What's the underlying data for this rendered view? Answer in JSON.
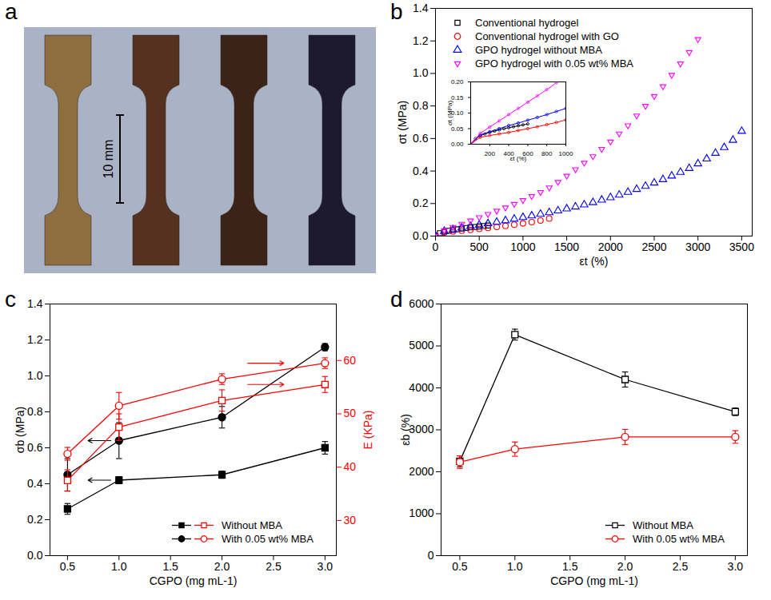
{
  "chart_data": [
    {
      "panel": "a",
      "type": "photo",
      "colors": [
        "#8e6d3e",
        "#55321f",
        "#3b2318",
        "#1d1a30"
      ],
      "scale_bar": "10 mm"
    },
    {
      "panel": "b",
      "type": "scatter",
      "x_label": "εt (%)",
      "y_label": "σt (MPa)",
      "xlim": [
        0,
        3620
      ],
      "ylim": [
        0,
        1.4
      ],
      "xticks": [
        0,
        500,
        1000,
        1500,
        2000,
        2500,
        3000,
        3500
      ],
      "yticks": [
        {
          "value": 0,
          "label": "0.0"
        },
        0.2,
        0.4,
        0.6,
        0.8,
        {
          "value": 1,
          "label": "1.0"
        },
        1.2,
        1.4
      ],
      "legend": "top-left",
      "series": [
        {
          "name": "Conventional hydrogel",
          "color": "#000000",
          "marker": "square-open",
          "x": [
            0,
            50,
            100,
            150,
            200,
            250,
            300,
            350,
            400,
            450,
            500,
            550,
            600
          ],
          "values": [
            0,
            0.018,
            0.027,
            0.033,
            0.038,
            0.042,
            0.046,
            0.05,
            0.053,
            0.056,
            0.059,
            0.062,
            0.065
          ]
        },
        {
          "name": "Conventional hydrogel with GO",
          "color": "#ff0000",
          "marker": "circle-open",
          "x": [
            0,
            100,
            200,
            300,
            400,
            500,
            600,
            700,
            800,
            900,
            1000,
            1100,
            1200,
            1300
          ],
          "values": [
            0,
            0.022,
            0.028,
            0.033,
            0.038,
            0.044,
            0.05,
            0.056,
            0.063,
            0.07,
            0.078,
            0.086,
            0.096,
            0.108
          ]
        },
        {
          "name": "GPO hydrogel without MBA",
          "color": "#0000ff",
          "marker": "triangle-open",
          "x": [
            0,
            100,
            200,
            300,
            400,
            500,
            600,
            700,
            800,
            900,
            1000,
            1100,
            1200,
            1300,
            1400,
            1500,
            1600,
            1700,
            1800,
            1900,
            2000,
            2100,
            2200,
            2300,
            2400,
            2500,
            2600,
            2700,
            2800,
            2900,
            3000,
            3100,
            3200,
            3300,
            3400,
            3500
          ],
          "values": [
            0,
            0.03,
            0.04,
            0.05,
            0.06,
            0.068,
            0.077,
            0.086,
            0.095,
            0.105,
            0.115,
            0.125,
            0.135,
            0.145,
            0.156,
            0.168,
            0.18,
            0.193,
            0.207,
            0.222,
            0.237,
            0.253,
            0.27,
            0.288,
            0.307,
            0.327,
            0.348,
            0.37,
            0.393,
            0.417,
            0.445,
            0.475,
            0.51,
            0.545,
            0.59,
            0.645
          ]
        },
        {
          "name": "GPO hydrogel with 0.05 wt% MBA",
          "color": "#ff00ff",
          "marker": "triangle-down-open",
          "x": [
            0,
            100,
            200,
            300,
            400,
            500,
            600,
            700,
            800,
            900,
            1000,
            1100,
            1200,
            1300,
            1400,
            1500,
            1600,
            1700,
            1800,
            1900,
            2000,
            2100,
            2200,
            2300,
            2400,
            2500,
            2600,
            2700,
            2800,
            2900,
            3000
          ],
          "values": [
            0,
            0.035,
            0.055,
            0.075,
            0.095,
            0.115,
            0.135,
            0.155,
            0.175,
            0.197,
            0.22,
            0.245,
            0.27,
            0.298,
            0.332,
            0.37,
            0.41,
            0.45,
            0.49,
            0.535,
            0.58,
            0.63,
            0.68,
            0.74,
            0.8,
            0.86,
            0.92,
            0.99,
            1.06,
            1.13,
            1.21
          ]
        }
      ],
      "inset": {
        "x_label": "εt (%)",
        "y_label": "σt (MPa)",
        "xlim": [
          0,
          1000
        ],
        "ylim": [
          0,
          0.2
        ],
        "xticks": [
          200,
          400,
          600,
          800,
          1000
        ],
        "yticks": [
          {
            "value": 0,
            "label": "0.00"
          },
          0.05,
          {
            "value": 0.1,
            "label": "0.10"
          },
          0.15,
          {
            "value": 0.2,
            "label": "0.20"
          }
        ]
      }
    },
    {
      "panel": "c",
      "type": "line",
      "x_label": "CGPO (mg mL-1)",
      "y_label": "σb (MPa)",
      "y2_label": "E (KPa)",
      "x": [
        0.5,
        1,
        2,
        3
      ],
      "xlim": [
        0.33,
        3.11
      ],
      "ylim": [
        0,
        1.4
      ],
      "y2lim": [
        23.4,
        70.6
      ],
      "xticks": [
        0.5,
        {
          "value": 1,
          "label": "1.0"
        },
        1.5,
        {
          "value": 2,
          "label": "2.0"
        },
        2.5,
        {
          "value": 3,
          "label": "3.0"
        }
      ],
      "yticks": [
        {
          "value": 0,
          "label": "0.0"
        },
        0.2,
        0.4,
        0.6,
        0.8,
        {
          "value": 1,
          "label": "1.0"
        },
        1.2,
        1.4
      ],
      "y2ticks": [
        30,
        40,
        50,
        60
      ],
      "legend": "bottom-right",
      "series": [
        {
          "name": "Without MBA",
          "color": "#000000",
          "marker": "square",
          "values": [
            0.26,
            0.42,
            0.45,
            0.6
          ],
          "errors": [
            0.03,
            0.02,
            0.02,
            0.035
          ]
        },
        {
          "name": "With 0.05 wt% MBA",
          "color": "#000000",
          "marker": "circle",
          "values": [
            0.45,
            0.64,
            0.77,
            1.16
          ],
          "errors": [
            0.09,
            0.1,
            0.06,
            0.02
          ]
        },
        {
          "name": "Without MBA",
          "color": "#ff0000",
          "marker": "square-open",
          "axis": "y2",
          "values": [
            37.5,
            47.5,
            52.5,
            55.5
          ],
          "errors": [
            2,
            2.5,
            2,
            1.5
          ]
        },
        {
          "name": "With 0.05 wt% MBA",
          "color": "#ff0000",
          "marker": "circle-open",
          "axis": "y2",
          "values": [
            42.5,
            51.5,
            56.5,
            59.5
          ],
          "errors": [
            1.2,
            2.5,
            1,
            1
          ]
        }
      ]
    },
    {
      "panel": "d",
      "type": "line",
      "x_label": "CGPO (mg mL-1)",
      "y_label": "εb (%)",
      "x": [
        0.5,
        1,
        2,
        3
      ],
      "xlim": [
        0.33,
        3.11
      ],
      "ylim": [
        0,
        6000
      ],
      "xticks": [
        0.5,
        {
          "value": 1,
          "label": "1.0"
        },
        1.5,
        {
          "value": 2,
          "label": "2.0"
        },
        2.5,
        {
          "value": 3,
          "label": "3.0"
        }
      ],
      "yticks": [
        0,
        1000,
        2000,
        3000,
        4000,
        5000,
        6000
      ],
      "legend": "bottom-right",
      "series": [
        {
          "name": "Without MBA",
          "color": "#000000",
          "marker": "square-open",
          "values": [
            2250,
            5270,
            4200,
            3430
          ],
          "errors": [
            130,
            130,
            180,
            90
          ]
        },
        {
          "name": "With 0.05 wt% MBA",
          "color": "#ff0000",
          "marker": "circle-open",
          "values": [
            2230,
            2540,
            2830,
            2830
          ],
          "errors": [
            150,
            170,
            180,
            150
          ]
        }
      ]
    }
  ]
}
